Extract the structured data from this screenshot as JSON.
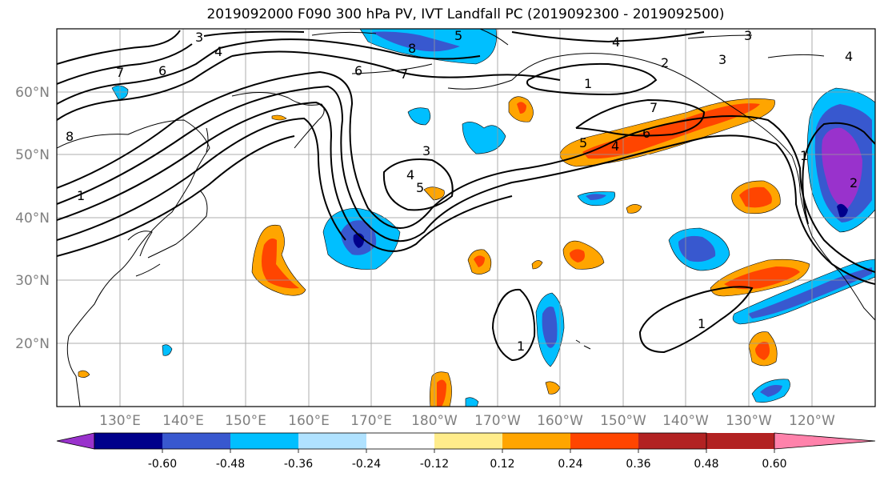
{
  "title": "2019092000 F090 300 hPa PV, IVT Landfall PC (2019092300 - 2019092500)",
  "lat_labels": [
    "60°N",
    "50°N",
    "40°N",
    "30°N",
    "20°N"
  ],
  "lon_labels": [
    "130°E",
    "140°E",
    "150°E",
    "160°E",
    "170°E",
    "180°W",
    "170°W",
    "160°W",
    "150°W",
    "140°W",
    "130°W",
    "120°W"
  ],
  "colorbar": {
    "colors": [
      "#9932cc",
      "#00008b",
      "#3858cf",
      "#00bfff",
      "#b0e2ff",
      "#ffffff",
      "#ffec8b",
      "#ffa500",
      "#ff4500",
      "#b22222",
      "#ff82ab"
    ],
    "tick_labels": [
      "-0.60",
      "-0.48",
      "-0.36",
      "-0.24",
      "-0.12",
      "0.12",
      "0.24",
      "0.36",
      "0.48",
      "0.60"
    ]
  },
  "contour_labels": [
    "3",
    "4",
    "6",
    "1",
    "8",
    "5",
    "7",
    "6",
    "4",
    "2",
    "3",
    "1",
    "7",
    "6",
    "5",
    "4",
    "3",
    "5",
    "4",
    "8",
    "7",
    "1",
    "1",
    "1",
    "2",
    "4",
    "3"
  ]
}
